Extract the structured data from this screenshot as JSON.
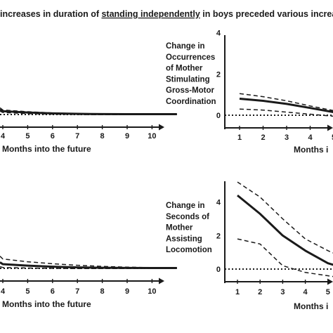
{
  "figure": {
    "title_prefix": "increases in duration of ",
    "title_underlined": "standing independently",
    "title_suffix": " in boys preceded various increase"
  },
  "chart_data": [
    {
      "type": "line",
      "panel": "top-left",
      "xlabel": "Months into the future",
      "x_ticks": [
        "4",
        "5",
        "6",
        "7",
        "8",
        "9",
        "10"
      ],
      "series": [
        {
          "style": "solid",
          "x": [
            2,
            3,
            4,
            5,
            6,
            7,
            8,
            9,
            10
          ],
          "y": [
            0.45,
            0.3,
            0.18,
            0.1,
            0.06,
            0.04,
            0.03,
            0.03,
            0.03
          ]
        },
        {
          "style": "dashed",
          "x": [
            2,
            3,
            4,
            5,
            6,
            7,
            8,
            9,
            10
          ],
          "y": [
            0.6,
            0.4,
            0.25,
            0.14,
            0.08,
            0.05,
            0.04,
            0.03,
            0.03
          ]
        },
        {
          "style": "dashed",
          "x": [
            2,
            3,
            4,
            5,
            6,
            7,
            8,
            9,
            10
          ],
          "y": [
            0.3,
            0.18,
            0.08,
            0.03,
            0.0,
            -0.02,
            -0.02,
            0.0,
            0.01
          ]
        }
      ],
      "baseline": 0
    },
    {
      "type": "line",
      "panel": "top-right",
      "ylabel_lines": [
        "Change in",
        "Occurrences",
        "of Mother",
        "Stimulating",
        "Gross-Motor",
        "Coordination"
      ],
      "xlabel": "Months i",
      "x_ticks": [
        "1",
        "2",
        "3",
        "4",
        "5"
      ],
      "y_ticks": [
        "0",
        "2",
        "4"
      ],
      "ylim": [
        -1,
        4.5
      ],
      "series": [
        {
          "style": "solid",
          "x": [
            1,
            2,
            3,
            4,
            5,
            6
          ],
          "y": [
            0.8,
            0.7,
            0.55,
            0.35,
            0.15,
            0.05
          ]
        },
        {
          "style": "dashed",
          "x": [
            1,
            2,
            3,
            4,
            5,
            6
          ],
          "y": [
            1.05,
            0.9,
            0.7,
            0.45,
            0.22,
            0.1
          ]
        },
        {
          "style": "dashed",
          "x": [
            1,
            2,
            3,
            4,
            5,
            6
          ],
          "y": [
            0.3,
            0.25,
            0.15,
            0.05,
            -0.05,
            -0.1
          ]
        }
      ],
      "baseline": 0
    },
    {
      "type": "line",
      "panel": "bottom-left",
      "xlabel": "Months into the future",
      "x_ticks": [
        "4",
        "5",
        "6",
        "7",
        "8",
        "9",
        "10"
      ],
      "series": [
        {
          "style": "solid",
          "x": [
            2,
            3,
            4,
            5,
            6,
            7,
            8,
            9,
            10
          ],
          "y": [
            0.55,
            0.38,
            0.25,
            0.15,
            0.09,
            0.06,
            0.04,
            0.03,
            0.03
          ]
        },
        {
          "style": "dashed",
          "x": [
            2,
            3,
            4,
            5,
            6,
            7,
            8,
            9,
            10
          ],
          "y": [
            1.1,
            0.85,
            0.6,
            0.42,
            0.28,
            0.18,
            0.11,
            0.07,
            0.05
          ]
        },
        {
          "style": "dashed",
          "x": [
            2,
            3,
            4,
            5,
            6,
            7,
            8,
            9,
            10
          ],
          "y": [
            0.15,
            0.08,
            0.03,
            0.0,
            -0.02,
            -0.02,
            -0.01,
            0.0,
            0.01
          ]
        }
      ],
      "baseline": 0
    },
    {
      "type": "line",
      "panel": "bottom-right",
      "ylabel_lines": [
        "Change in",
        "Seconds of",
        "Mother",
        "Assisting",
        "Locomotion"
      ],
      "xlabel": "Months i",
      "x_ticks": [
        "1",
        "2",
        "3",
        "4",
        "5"
      ],
      "y_ticks": [
        "0",
        "2",
        "4"
      ],
      "ylim": [
        -1,
        6
      ],
      "series": [
        {
          "style": "solid",
          "x": [
            1,
            2,
            3,
            4,
            5,
            5.5
          ],
          "y": [
            4.4,
            3.3,
            2.0,
            1.1,
            0.35,
            0.15
          ]
        },
        {
          "style": "dashed",
          "x": [
            1,
            2,
            3,
            4,
            5,
            5.5
          ],
          "y": [
            5.2,
            4.3,
            3.0,
            1.8,
            1.1,
            0.8
          ]
        },
        {
          "style": "dashed",
          "x": [
            1,
            2,
            3,
            4,
            5,
            5.5
          ],
          "y": [
            1.8,
            1.5,
            0.2,
            -0.2,
            -0.4,
            -0.5
          ]
        }
      ],
      "baseline": 0
    }
  ]
}
